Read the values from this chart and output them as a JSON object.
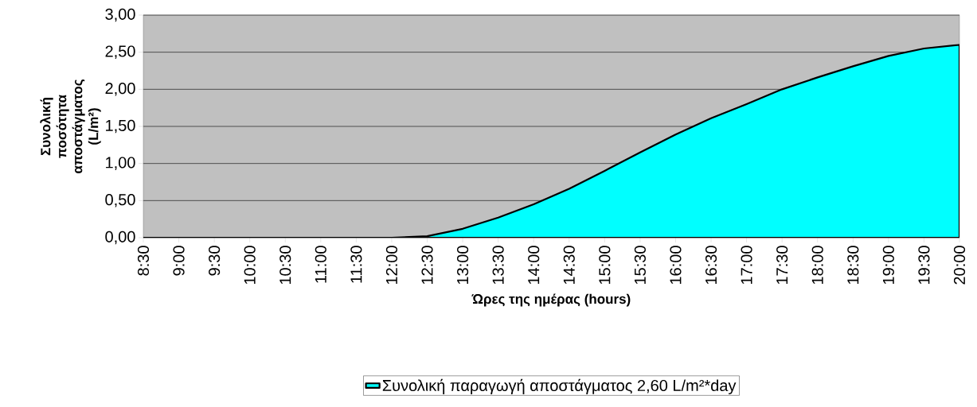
{
  "chart_data": {
    "type": "area",
    "xlabel": "Ώρες της ημέρας (hours)",
    "ylabel": "Συνολική ποσότητα αποστάγματος (L/m²)",
    "categories": [
      "8:30",
      "9:00",
      "9:30",
      "10:00",
      "10:30",
      "11:00",
      "11:30",
      "12:00",
      "12:30",
      "13:00",
      "13:30",
      "14:00",
      "14:30",
      "15:00",
      "15:30",
      "16:00",
      "16:30",
      "17:00",
      "17:30",
      "18:00",
      "18:30",
      "19:00",
      "19:30",
      "20:00"
    ],
    "series": [
      {
        "name": "Συνολική παραγωγή αποστάγματος 2,60  L/m²*day",
        "color": "#00ffff",
        "values": [
          0,
          0,
          0,
          0,
          0,
          0,
          0,
          0,
          0.02,
          0.12,
          0.27,
          0.45,
          0.66,
          0.9,
          1.15,
          1.39,
          1.61,
          1.8,
          2.0,
          2.16,
          2.31,
          2.45,
          2.55,
          2.6
        ]
      }
    ],
    "ylim": [
      0,
      3
    ],
    "yticks": [
      {
        "value": 0,
        "label": "0,00"
      },
      {
        "value": 0.5,
        "label": "0,50"
      },
      {
        "value": 1,
        "label": "1,00"
      },
      {
        "value": 1.5,
        "label": "1,50"
      },
      {
        "value": 2,
        "label": "2,00"
      },
      {
        "value": 2.5,
        "label": "2,50"
      },
      {
        "value": 3,
        "label": "3,00"
      }
    ],
    "grid": "y",
    "legend": "bottom"
  }
}
